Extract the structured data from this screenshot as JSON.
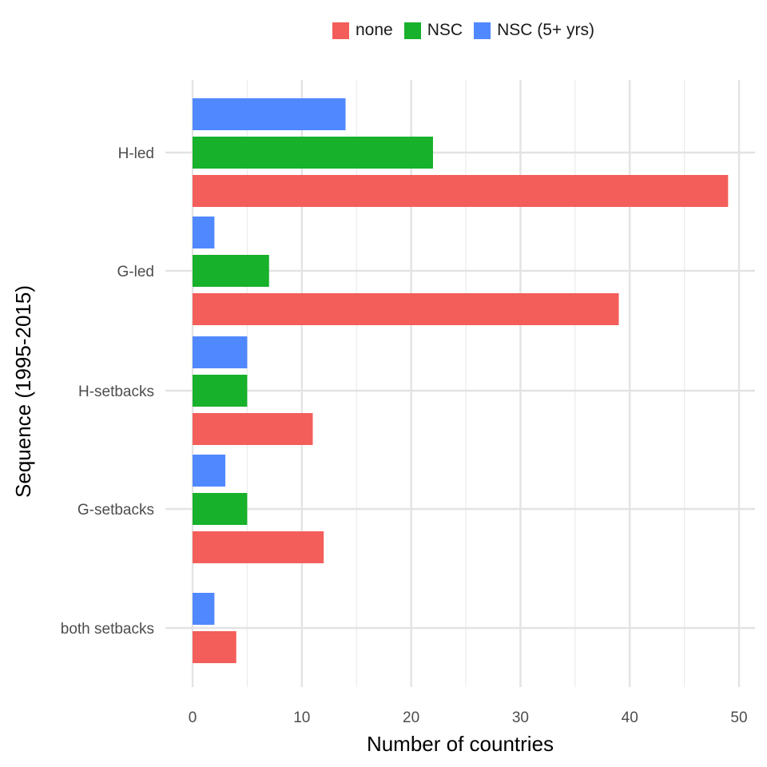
{
  "chart_data": {
    "type": "bar",
    "orientation": "horizontal",
    "categories": [
      "H-led",
      "G-led",
      "H-setbacks",
      "G-setbacks",
      "both setbacks"
    ],
    "series": [
      {
        "name": "none",
        "color": "#F35E5A",
        "values": [
          49,
          39,
          11,
          12,
          4
        ]
      },
      {
        "name": "NSC",
        "color": "#17B12B",
        "values": [
          22,
          7,
          5,
          5,
          null
        ]
      },
      {
        "name": "NSC (5+ yrs)",
        "color": "#5088FF",
        "values": [
          14,
          2,
          5,
          3,
          2
        ]
      }
    ],
    "xlabel": "Number of countries",
    "ylabel": "Sequence (1995-2015)",
    "xlim": [
      0,
      52
    ],
    "xticks": [
      "0",
      "10",
      "20",
      "30",
      "40",
      "50"
    ],
    "grid": true,
    "legend_position": "top"
  }
}
